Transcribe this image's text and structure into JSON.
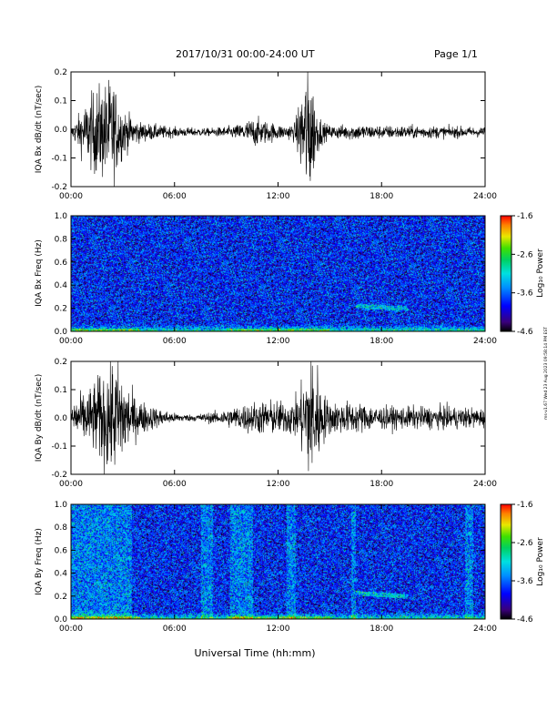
{
  "header": {
    "title": "2017/10/31  00:00-24:00 UT",
    "page": "Page 1/1"
  },
  "side_note": "ms-v1.67 Wed 23 Aug 2023 09:58:14 PM EST",
  "chart_data": [
    {
      "type": "line",
      "ylabel": "IQA Bx dB/dt (nT/sec)",
      "xlabel": "",
      "x_ticks": [
        "00:00",
        "06:00",
        "12:00",
        "18:00",
        "24:00"
      ],
      "y_ticks": [
        "-0.2",
        "-0.1",
        "0.0",
        "0.1",
        "0.2"
      ],
      "xlim": [
        0,
        24
      ],
      "ylim": [
        -0.2,
        0.2
      ],
      "baseline": -0.01,
      "envelope_hours": [
        0,
        0.3,
        0.6,
        1.0,
        1.5,
        2.0,
        2.4,
        2.8,
        3.2,
        4.0,
        6.0,
        8.0,
        9.5,
        10.2,
        10.6,
        11.0,
        11.6,
        12.4,
        13.0,
        13.4,
        13.7,
        13.9,
        14.2,
        14.6,
        15.0,
        16.5,
        18.0,
        20.0,
        22.0,
        24.0
      ],
      "envelope_amplitude": [
        0.015,
        0.04,
        0.07,
        0.1,
        0.14,
        0.15,
        0.17,
        0.1,
        0.06,
        0.03,
        0.015,
        0.012,
        0.02,
        0.035,
        0.045,
        0.04,
        0.03,
        0.02,
        0.03,
        0.15,
        0.22,
        0.2,
        0.08,
        0.03,
        0.02,
        0.025,
        0.02,
        0.02,
        0.018,
        0.015
      ]
    },
    {
      "type": "heatmap",
      "ylabel": "IQA Bx Freq (Hz)",
      "colorbar_label": "Log₁₀ Power",
      "colorbar_ticks": [
        "-1.6",
        "-2.6",
        "-3.6",
        "-4.6"
      ],
      "zlim": [
        -4.6,
        -1.6
      ],
      "x_ticks": [
        "00:00",
        "06:00",
        "12:00",
        "18:00",
        "24:00"
      ],
      "y_ticks": [
        "0.0",
        "0.2",
        "0.4",
        "0.6",
        "0.8",
        "1.0"
      ],
      "xlim": [
        0,
        24
      ],
      "ylim": [
        0,
        1.0
      ],
      "band_hours": [
        16.5,
        19.5
      ],
      "band_freq_hz": [
        0.22,
        0.2
      ]
    },
    {
      "type": "line",
      "ylabel": "IQA By dB/dt (nT/sec)",
      "xlabel": "",
      "x_ticks": [
        "00:00",
        "06:00",
        "12:00",
        "18:00",
        "24:00"
      ],
      "y_ticks": [
        "-0.2",
        "-0.1",
        "0.0",
        "0.1",
        "0.2"
      ],
      "xlim": [
        0,
        24
      ],
      "ylim": [
        -0.2,
        0.2
      ],
      "baseline": 0.0,
      "envelope_hours": [
        0,
        0.5,
        1.0,
        1.5,
        2.0,
        2.4,
        2.8,
        3.2,
        3.6,
        4.2,
        5.0,
        6.0,
        7.0,
        8.5,
        9.5,
        10.5,
        11.5,
        12.5,
        13.2,
        13.6,
        13.9,
        14.2,
        14.5,
        15.0,
        16.0,
        17.0,
        18.0,
        20.0,
        22.0,
        24.0
      ],
      "envelope_amplitude": [
        0.05,
        0.07,
        0.09,
        0.12,
        0.17,
        0.18,
        0.19,
        0.12,
        0.07,
        0.05,
        0.03,
        0.015,
        0.01,
        0.02,
        0.035,
        0.05,
        0.055,
        0.05,
        0.07,
        0.17,
        0.22,
        0.2,
        0.09,
        0.05,
        0.05,
        0.045,
        0.035,
        0.035,
        0.035,
        0.03
      ]
    },
    {
      "type": "heatmap",
      "ylabel": "IQA By Freq (Hz)",
      "colorbar_label": "Log₁₀ Power",
      "colorbar_ticks": [
        "-1.6",
        "-2.6",
        "-3.6",
        "-4.6"
      ],
      "zlim": [
        -4.6,
        -1.6
      ],
      "x_ticks": [
        "00:00",
        "06:00",
        "12:00",
        "18:00",
        "24:00"
      ],
      "y_ticks": [
        "0.0",
        "0.2",
        "0.4",
        "0.6",
        "0.8",
        "1.0"
      ],
      "xlim": [
        0,
        24
      ],
      "ylim": [
        0,
        1.0
      ],
      "band_hours": [
        16.5,
        19.5
      ],
      "band_freq_hz": [
        0.23,
        0.2
      ],
      "bright_stripes_hours": [
        [
          0,
          3.5
        ],
        [
          7.5,
          8.2
        ],
        [
          9.2,
          10.5
        ],
        [
          12.5,
          13.0
        ],
        [
          16.2,
          16.5
        ],
        [
          22.8,
          23.3
        ]
      ]
    }
  ],
  "footer": {
    "xlabel": "Universal Time (hh:mm)"
  },
  "colors": {
    "trace": "#000000",
    "axes": "#000000"
  }
}
